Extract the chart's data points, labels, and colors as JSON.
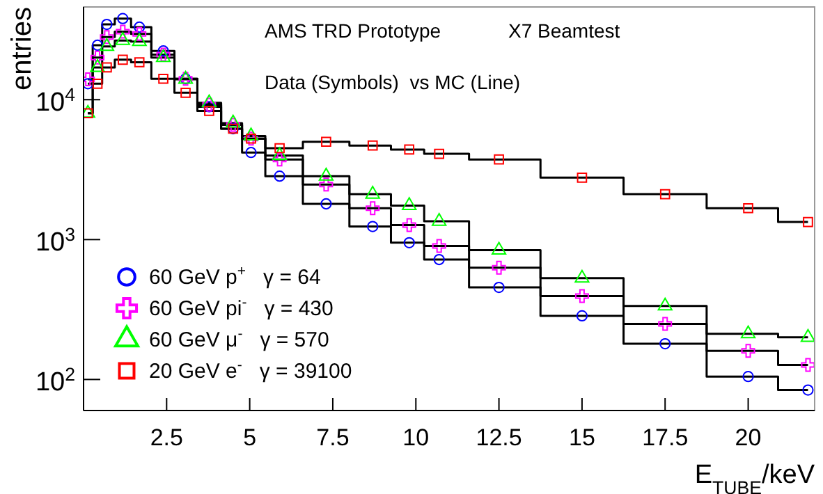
{
  "chart_data": {
    "type": "scatter",
    "xlabel": "E$_{TUBE}$/keV",
    "ylabel": "entries",
    "annotations": [
      "AMS TRD Prototype",
      "X7 Beamtest",
      "Data (Symbols)  vs MC (Line)"
    ],
    "x": [
      0.13,
      0.42,
      0.7,
      1.18,
      1.68,
      2.4,
      3.07,
      3.78,
      4.5,
      5.04,
      5.9,
      7.3,
      8.7,
      9.8,
      10.7,
      12.5,
      15,
      17.5,
      20,
      21.8
    ],
    "xlim": [
      0,
      22
    ],
    "xticks": [
      2.5,
      5,
      7.5,
      10,
      12.5,
      15,
      17.5,
      20
    ],
    "ylim": [
      60,
      46000
    ],
    "yticks": [
      {
        "value": 100,
        "label": "10$^{2}$"
      },
      {
        "value": 1000,
        "label": "10$^{3}$"
      },
      {
        "value": 10000,
        "label": "10$^{4}$"
      }
    ],
    "log": "y",
    "grid": false,
    "legend": "bottom left",
    "series": [
      {
        "name": "60 GeV p$^{+}$   γ = 64",
        "color": "#0000ff",
        "marker": "circle",
        "values": [
          13000,
          24500,
          34500,
          38000,
          33000,
          22300,
          14100,
          8900,
          6200,
          4190,
          2840,
          1800,
          1240,
          950,
          720,
          455,
          285,
          180,
          105,
          84
        ]
      },
      {
        "name": "60 GeV pi$^{-}$   γ = 430",
        "color": "#ff00ff",
        "marker": "cross",
        "values": [
          14000,
          20000,
          28000,
          30600,
          29500,
          21000,
          14100,
          9200,
          6600,
          5265,
          3740,
          2470,
          1675,
          1270,
          900,
          630,
          395,
          250,
          160,
          127
        ]
      },
      {
        "name": "60 GeV μ$^{-}$   γ = 570",
        "color": "#00ff00",
        "marker": "triangle",
        "values": [
          8000,
          17000,
          24000,
          26500,
          26000,
          20000,
          14000,
          9500,
          6800,
          5500,
          3990,
          2840,
          2110,
          1750,
          1350,
          840,
          530,
          335,
          212,
          200
        ]
      },
      {
        "name": "20 GeV e$^{-}$   γ = 39100",
        "color": "#ff0000",
        "marker": "square",
        "values": [
          8000,
          13000,
          17000,
          19300,
          18500,
          14100,
          11200,
          8300,
          6200,
          5265,
          4500,
          5000,
          4700,
          4400,
          4100,
          3740,
          2770,
          2110,
          1675,
          1335
        ]
      },
      {
        "type": "step",
        "color": "#000000",
        "values": [
          13000,
          24500,
          34500,
          38000,
          33000,
          22300,
          14100,
          8900,
          6200,
          4190,
          2840,
          1800,
          1240,
          950,
          720,
          455,
          285,
          180,
          105,
          84
        ]
      },
      {
        "type": "step",
        "color": "#000000",
        "values": [
          14000,
          20000,
          28000,
          30600,
          29500,
          21000,
          14100,
          9200,
          6600,
          5265,
          3740,
          2470,
          1675,
          1270,
          900,
          630,
          395,
          250,
          160,
          127
        ]
      },
      {
        "type": "step",
        "color": "#000000",
        "values": [
          8000,
          17000,
          24000,
          26500,
          26000,
          20000,
          14000,
          9500,
          6800,
          5500,
          3990,
          2840,
          2110,
          1750,
          1350,
          840,
          530,
          335,
          212,
          200
        ]
      },
      {
        "type": "step",
        "color": "#000000",
        "values": [
          8000,
          13000,
          17000,
          19300,
          18500,
          14100,
          11200,
          8300,
          6200,
          5265,
          4500,
          5000,
          4700,
          4400,
          4100,
          3740,
          2770,
          2110,
          1675,
          1335
        ]
      }
    ]
  }
}
